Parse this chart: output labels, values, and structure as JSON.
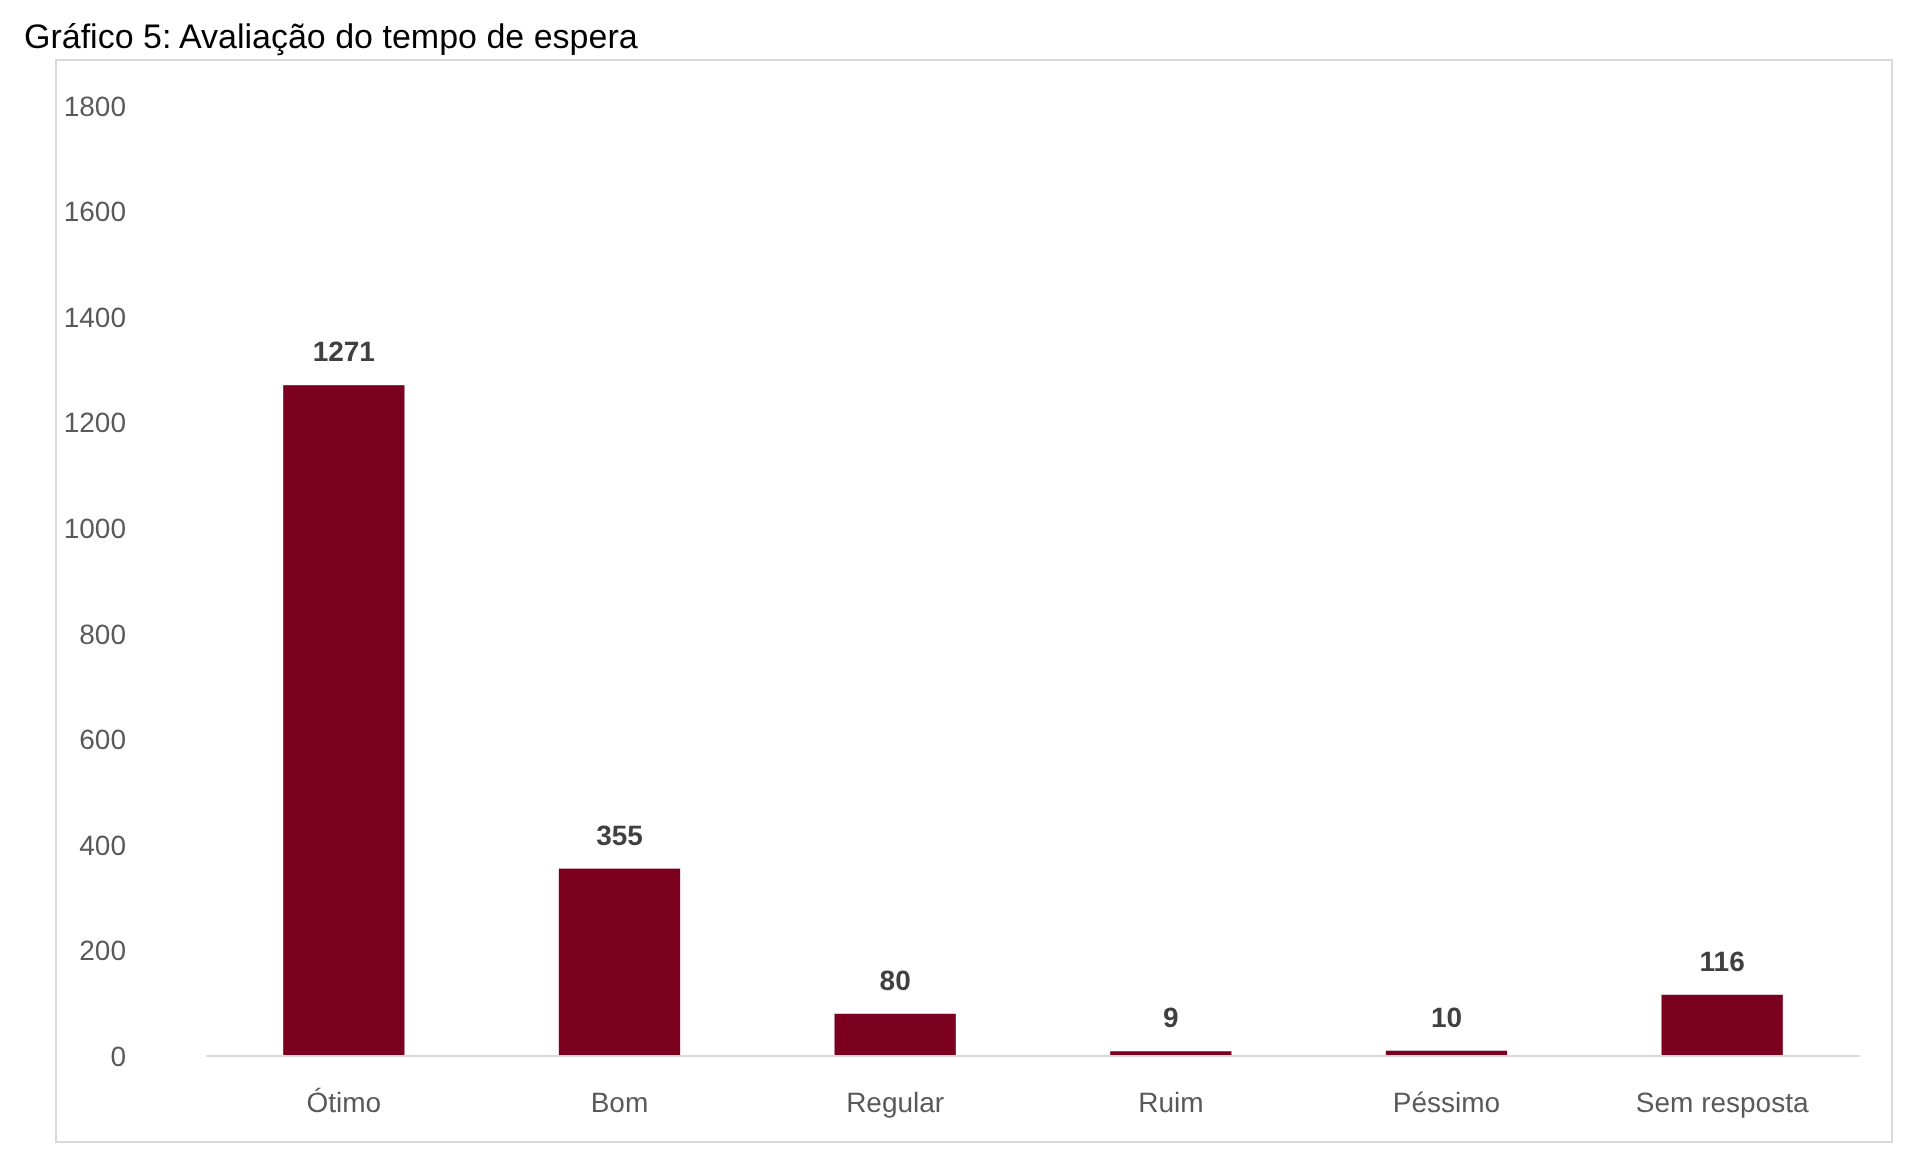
{
  "chart_data": {
    "type": "bar",
    "title": "Gráfico 5: Avaliação do tempo de espera",
    "categories": [
      "Ótimo",
      "Bom",
      "Regular",
      "Ruim",
      "Péssimo",
      "Sem resposta"
    ],
    "values": [
      1271,
      355,
      80,
      9,
      10,
      116
    ],
    "color": "#7b0020",
    "ylim": [
      0,
      1800
    ],
    "yticks": [
      0,
      200,
      400,
      600,
      800,
      1000,
      1200,
      1400,
      1600,
      1800
    ],
    "grid": false,
    "data_labels": true
  }
}
